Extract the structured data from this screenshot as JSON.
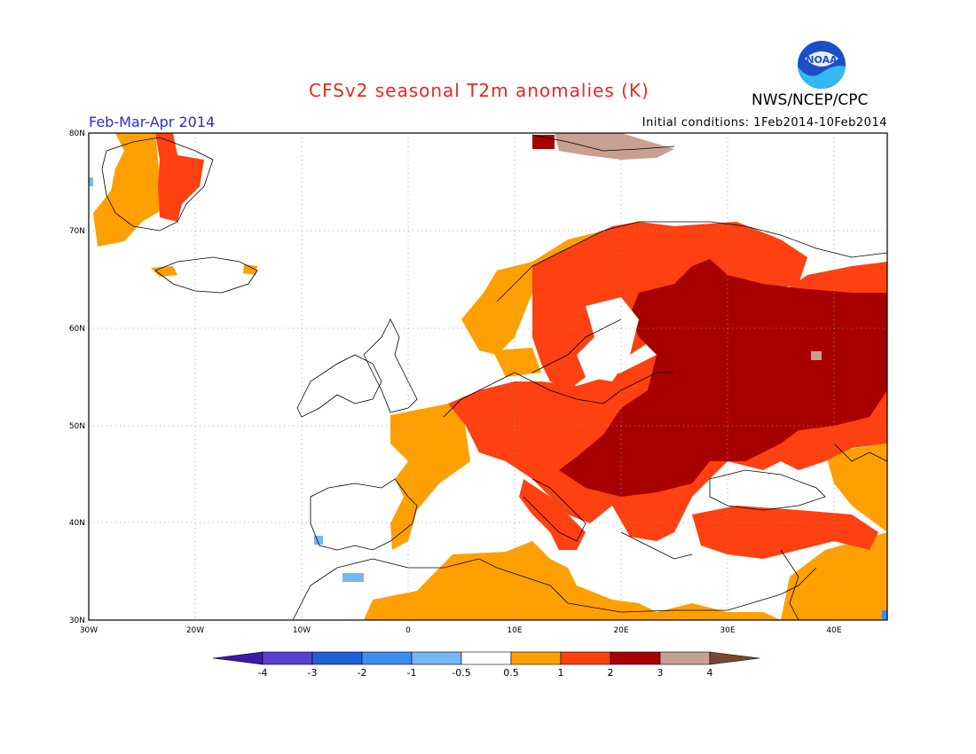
{
  "header": {
    "title": "CFSv2 seasonal T2m anomalies (K)",
    "agency": "NWS/NCEP/CPC",
    "period": "Feb-Mar-Apr 2014",
    "initial_conditions": "Initial conditions: 1Feb2014-10Feb2014",
    "logo_text": "NOAA"
  },
  "axes": {
    "lon_ticks": [
      "30W",
      "20W",
      "10W",
      "0",
      "10E",
      "20E",
      "30E",
      "40E"
    ],
    "lat_ticks": [
      "80N",
      "70N",
      "60N",
      "50N",
      "40N",
      "30N"
    ]
  },
  "colorbar": {
    "colors": [
      "#3a1aa8",
      "#5a3fd4",
      "#1f62d6",
      "#3c8ff0",
      "#79b6f2",
      "#ffffff",
      "#ffa000",
      "#ff4010",
      "#a80000",
      "#c8a090",
      "#7a4830"
    ],
    "labels": [
      "-4",
      "-3",
      "-2",
      "-1",
      "-0.5",
      "0.5",
      "1",
      "2",
      "3",
      "4"
    ]
  },
  "colors": {
    "c05_1": "#ffa000",
    "c1_2": "#ff4010",
    "c2_3": "#a80000",
    "c3_4": "#c8a090",
    "c4p": "#7a4830",
    "cm05_1": "#79b6f2",
    "cm1_2": "#3c8ff0",
    "title": "#e8281e",
    "period": "#2b2bd6"
  }
}
